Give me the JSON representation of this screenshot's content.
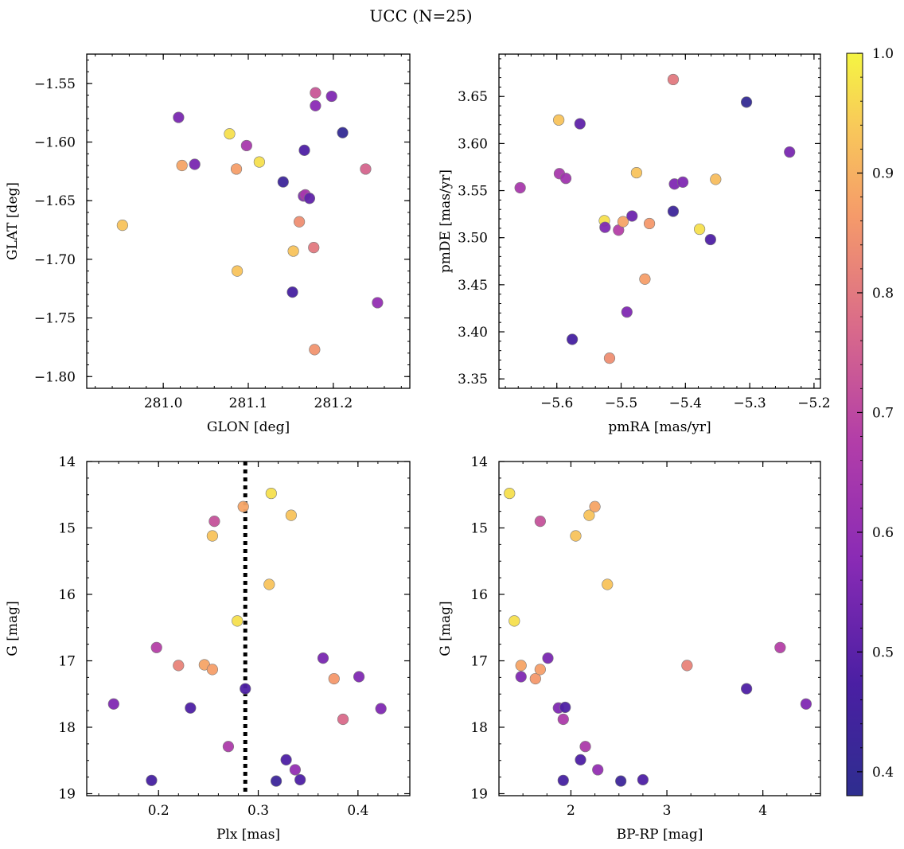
{
  "figure": {
    "title": "UCC (N=25)"
  },
  "colorbar": {
    "range": [
      0.38,
      1.0
    ],
    "ticks": [
      0.4,
      0.5,
      0.6,
      0.7,
      0.8,
      0.9,
      1.0
    ],
    "tick_labels": [
      "0.4",
      "0.5",
      "0.6",
      "0.7",
      "0.8",
      "0.9",
      "1.0"
    ],
    "colormap": "plasma",
    "colormap_range": [
      "#2e2e8f",
      "#f5f542"
    ]
  },
  "chart_data": [
    {
      "type": "scatter",
      "xlabel": "GLON [deg]",
      "ylabel": "GLAT [deg]",
      "xlim": [
        280.91,
        281.29
      ],
      "ylim": [
        -1.81,
        -1.525
      ],
      "xticks": [
        281.0,
        281.1,
        281.2
      ],
      "xtick_labels": [
        "281.0",
        "281.1",
        "281.2"
      ],
      "yticks": [
        -1.55,
        -1.6,
        -1.65,
        -1.7,
        -1.75,
        -1.8
      ],
      "ytick_labels": [
        "−1.55",
        "−1.60",
        "−1.65",
        "−1.70",
        "−1.75",
        "−1.80"
      ],
      "points": [
        {
          "x": 281.018,
          "y": -1.579,
          "c": 0.55
        },
        {
          "x": 281.022,
          "y": -1.62,
          "c": 0.88
        },
        {
          "x": 281.037,
          "y": -1.619,
          "c": 0.55
        },
        {
          "x": 280.952,
          "y": -1.671,
          "c": 0.93
        },
        {
          "x": 281.078,
          "y": -1.593,
          "c": 0.97
        },
        {
          "x": 281.086,
          "y": -1.623,
          "c": 0.87
        },
        {
          "x": 281.098,
          "y": -1.603,
          "c": 0.65
        },
        {
          "x": 281.113,
          "y": -1.617,
          "c": 0.97
        },
        {
          "x": 281.087,
          "y": -1.71,
          "c": 0.93
        },
        {
          "x": 281.141,
          "y": -1.634,
          "c": 0.43
        },
        {
          "x": 281.153,
          "y": -1.693,
          "c": 0.93
        },
        {
          "x": 281.152,
          "y": -1.728,
          "c": 0.46
        },
        {
          "x": 281.16,
          "y": -1.668,
          "c": 0.84
        },
        {
          "x": 281.165,
          "y": -1.646,
          "c": 0.56
        },
        {
          "x": 281.167,
          "y": -1.645,
          "c": 0.65
        },
        {
          "x": 281.166,
          "y": -1.607,
          "c": 0.48
        },
        {
          "x": 281.172,
          "y": -1.648,
          "c": 0.51
        },
        {
          "x": 281.177,
          "y": -1.69,
          "c": 0.8
        },
        {
          "x": 281.179,
          "y": -1.569,
          "c": 0.58
        },
        {
          "x": 281.179,
          "y": -1.558,
          "c": 0.73
        },
        {
          "x": 281.198,
          "y": -1.561,
          "c": 0.56
        },
        {
          "x": 281.211,
          "y": -1.592,
          "c": 0.4
        },
        {
          "x": 281.178,
          "y": -1.777,
          "c": 0.85
        },
        {
          "x": 281.238,
          "y": -1.623,
          "c": 0.76
        },
        {
          "x": 281.252,
          "y": -1.737,
          "c": 0.6
        }
      ]
    },
    {
      "type": "scatter",
      "xlabel": "pmRA [mas/yr]",
      "ylabel": "pmDE [mas/yr]",
      "xlim": [
        -5.69,
        -5.19
      ],
      "ylim": [
        3.34,
        3.695
      ],
      "xticks": [
        -5.6,
        -5.5,
        -5.4,
        -5.3,
        -5.2
      ],
      "xtick_labels": [
        "−5.6",
        "−5.5",
        "−5.4",
        "−5.3",
        "−5.2"
      ],
      "yticks": [
        3.35,
        3.4,
        3.45,
        3.5,
        3.55,
        3.6,
        3.65
      ],
      "ytick_labels": [
        "3.35",
        "3.40",
        "3.45",
        "3.50",
        "3.55",
        "3.60",
        "3.65"
      ],
      "points": [
        {
          "x": -5.657,
          "y": 3.553,
          "c": 0.65
        },
        {
          "x": -5.597,
          "y": 3.625,
          "c": 0.93
        },
        {
          "x": -5.596,
          "y": 3.568,
          "c": 0.65
        },
        {
          "x": -5.586,
          "y": 3.563,
          "c": 0.63
        },
        {
          "x": -5.564,
          "y": 3.621,
          "c": 0.51
        },
        {
          "x": -5.576,
          "y": 3.392,
          "c": 0.46
        },
        {
          "x": -5.526,
          "y": 3.518,
          "c": 0.97
        },
        {
          "x": -5.525,
          "y": 3.511,
          "c": 0.56
        },
        {
          "x": -5.518,
          "y": 3.372,
          "c": 0.84
        },
        {
          "x": -5.504,
          "y": 3.508,
          "c": 0.68
        },
        {
          "x": -5.497,
          "y": 3.517,
          "c": 0.88
        },
        {
          "x": -5.483,
          "y": 3.523,
          "c": 0.53
        },
        {
          "x": -5.476,
          "y": 3.569,
          "c": 0.93
        },
        {
          "x": -5.491,
          "y": 3.421,
          "c": 0.56
        },
        {
          "x": -5.463,
          "y": 3.456,
          "c": 0.87
        },
        {
          "x": -5.456,
          "y": 3.515,
          "c": 0.86
        },
        {
          "x": -5.419,
          "y": 3.668,
          "c": 0.8
        },
        {
          "x": -5.417,
          "y": 3.557,
          "c": 0.56
        },
        {
          "x": -5.419,
          "y": 3.528,
          "c": 0.43
        },
        {
          "x": -5.404,
          "y": 3.559,
          "c": 0.56
        },
        {
          "x": -5.378,
          "y": 3.509,
          "c": 0.97
        },
        {
          "x": -5.353,
          "y": 3.562,
          "c": 0.92
        },
        {
          "x": -5.361,
          "y": 3.498,
          "c": 0.48
        },
        {
          "x": -5.305,
          "y": 3.644,
          "c": 0.4
        },
        {
          "x": -5.238,
          "y": 3.591,
          "c": 0.55
        }
      ]
    },
    {
      "type": "scatter",
      "xlabel": "Plx [mas]",
      "ylabel": "G [mag]",
      "xlim": [
        0.128,
        0.452
      ],
      "ylim": [
        19.03,
        14.0
      ],
      "y_inverted": true,
      "xticks": [
        0.2,
        0.3,
        0.4
      ],
      "xtick_labels": [
        "0.2",
        "0.3",
        "0.4"
      ],
      "yticks": [
        14,
        15,
        16,
        17,
        18,
        19
      ],
      "ytick_labels": [
        "14",
        "15",
        "16",
        "17",
        "18",
        "19"
      ],
      "vline": {
        "x": 0.287,
        "style": "dotted"
      },
      "points": [
        {
          "x": 0.313,
          "y": 14.48,
          "c": 0.97
        },
        {
          "x": 0.285,
          "y": 14.68,
          "c": 0.88
        },
        {
          "x": 0.333,
          "y": 14.81,
          "c": 0.93
        },
        {
          "x": 0.256,
          "y": 14.9,
          "c": 0.72
        },
        {
          "x": 0.254,
          "y": 15.12,
          "c": 0.93
        },
        {
          "x": 0.311,
          "y": 15.85,
          "c": 0.93
        },
        {
          "x": 0.279,
          "y": 16.4,
          "c": 0.97
        },
        {
          "x": 0.198,
          "y": 16.8,
          "c": 0.68
        },
        {
          "x": 0.365,
          "y": 16.96,
          "c": 0.55
        },
        {
          "x": 0.22,
          "y": 17.07,
          "c": 0.82
        },
        {
          "x": 0.246,
          "y": 17.06,
          "c": 0.88
        },
        {
          "x": 0.254,
          "y": 17.13,
          "c": 0.87
        },
        {
          "x": 0.376,
          "y": 17.27,
          "c": 0.86
        },
        {
          "x": 0.401,
          "y": 17.24,
          "c": 0.56
        },
        {
          "x": 0.287,
          "y": 17.42,
          "c": 0.48
        },
        {
          "x": 0.155,
          "y": 17.65,
          "c": 0.56
        },
        {
          "x": 0.232,
          "y": 17.71,
          "c": 0.48
        },
        {
          "x": 0.423,
          "y": 17.72,
          "c": 0.56
        },
        {
          "x": 0.385,
          "y": 17.88,
          "c": 0.77
        },
        {
          "x": 0.27,
          "y": 18.29,
          "c": 0.66
        },
        {
          "x": 0.328,
          "y": 18.49,
          "c": 0.48
        },
        {
          "x": 0.337,
          "y": 18.64,
          "c": 0.6
        },
        {
          "x": 0.193,
          "y": 18.8,
          "c": 0.46
        },
        {
          "x": 0.318,
          "y": 18.81,
          "c": 0.43
        },
        {
          "x": 0.342,
          "y": 18.79,
          "c": 0.48
        }
      ]
    },
    {
      "type": "scatter",
      "xlabel": "BP-RP [mag]",
      "ylabel": "G [mag]",
      "xlim": [
        1.25,
        4.6
      ],
      "ylim": [
        19.03,
        14.0
      ],
      "y_inverted": true,
      "xticks": [
        2,
        3,
        4
      ],
      "xtick_labels": [
        "2",
        "3",
        "4"
      ],
      "yticks": [
        14,
        15,
        16,
        17,
        18,
        19
      ],
      "ytick_labels": [
        "14",
        "15",
        "16",
        "17",
        "18",
        "19"
      ],
      "points": [
        {
          "x": 1.36,
          "y": 14.48,
          "c": 0.97
        },
        {
          "x": 1.41,
          "y": 16.4,
          "c": 0.97
        },
        {
          "x": 1.48,
          "y": 17.07,
          "c": 0.88
        },
        {
          "x": 1.48,
          "y": 17.24,
          "c": 0.56
        },
        {
          "x": 1.63,
          "y": 17.27,
          "c": 0.86
        },
        {
          "x": 1.68,
          "y": 17.13,
          "c": 0.87
        },
        {
          "x": 1.68,
          "y": 14.9,
          "c": 0.72
        },
        {
          "x": 1.76,
          "y": 16.96,
          "c": 0.55
        },
        {
          "x": 1.87,
          "y": 17.71,
          "c": 0.56
        },
        {
          "x": 1.92,
          "y": 17.88,
          "c": 0.66
        },
        {
          "x": 1.94,
          "y": 17.7,
          "c": 0.48
        },
        {
          "x": 1.92,
          "y": 18.8,
          "c": 0.46
        },
        {
          "x": 2.05,
          "y": 15.12,
          "c": 0.93
        },
        {
          "x": 2.1,
          "y": 18.49,
          "c": 0.48
        },
        {
          "x": 2.15,
          "y": 18.29,
          "c": 0.66
        },
        {
          "x": 2.19,
          "y": 14.81,
          "c": 0.93
        },
        {
          "x": 2.25,
          "y": 14.68,
          "c": 0.88
        },
        {
          "x": 2.28,
          "y": 18.64,
          "c": 0.6
        },
        {
          "x": 2.38,
          "y": 15.85,
          "c": 0.93
        },
        {
          "x": 2.52,
          "y": 18.81,
          "c": 0.43
        },
        {
          "x": 2.75,
          "y": 18.79,
          "c": 0.48
        },
        {
          "x": 3.21,
          "y": 17.07,
          "c": 0.82
        },
        {
          "x": 3.83,
          "y": 17.42,
          "c": 0.48
        },
        {
          "x": 4.18,
          "y": 16.8,
          "c": 0.68
        },
        {
          "x": 4.45,
          "y": 17.65,
          "c": 0.56
        }
      ]
    }
  ]
}
